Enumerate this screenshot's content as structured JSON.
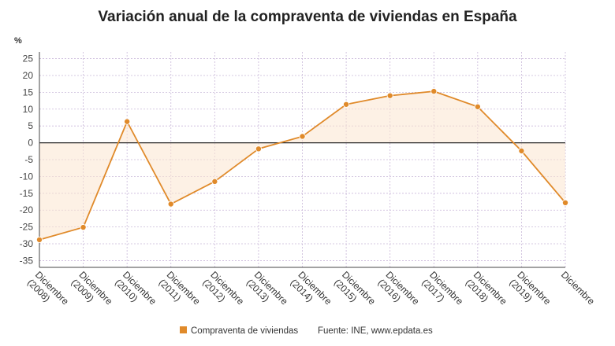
{
  "chart_data": {
    "type": "area",
    "title": "Variación anual de la compraventa de viviendas en España",
    "ylabel": "%",
    "xlabel": "",
    "ylim": [
      -37,
      27
    ],
    "yticks": [
      25,
      20,
      15,
      10,
      5,
      0,
      -5,
      -10,
      -15,
      -20,
      -25,
      -30,
      -35
    ],
    "grid": true,
    "legend_position": "bottom",
    "categories": [
      [
        "Diciembre",
        "(2008)"
      ],
      [
        "Diciembre",
        "(2009)"
      ],
      [
        "Diciembre",
        "(2010)"
      ],
      [
        "Diciembre",
        "(2011)"
      ],
      [
        "Diciembre",
        "(2012)"
      ],
      [
        "Diciembre",
        "(2013)"
      ],
      [
        "Diciembre",
        "(2014)"
      ],
      [
        "Diciembre",
        "(2015)"
      ],
      [
        "Diciembre",
        "(2016)"
      ],
      [
        "Diciembre",
        "(2017)"
      ],
      [
        "Diciembre",
        "(2018)"
      ],
      [
        "Diciembre",
        "(2019)"
      ],
      [
        "Diciembre",
        ""
      ]
    ],
    "series": [
      {
        "name": "Compraventa de viviendas",
        "color": "#e08a2a",
        "values": [
          -28.8,
          -25.1,
          6.3,
          -18.2,
          -11.5,
          -1.8,
          1.9,
          11.4,
          14.0,
          15.3,
          10.7,
          -2.4,
          -17.8
        ]
      }
    ],
    "source": "Fuente: INE, www.epdata.es"
  }
}
